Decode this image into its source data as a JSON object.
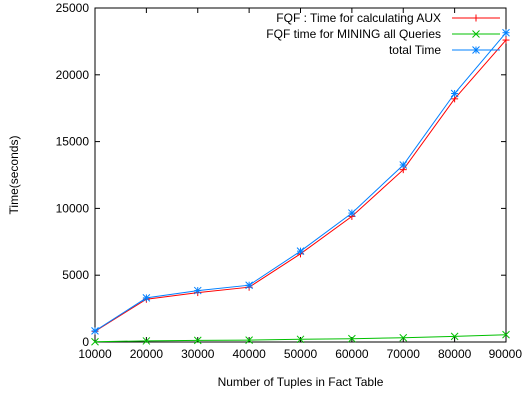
{
  "chart_data": {
    "type": "line",
    "xlabel": "Number of Tuples in Fact Table",
    "ylabel": "Time(seconds)",
    "x": [
      10000,
      20000,
      30000,
      40000,
      50000,
      60000,
      70000,
      80000,
      90000
    ],
    "xlim": [
      10000,
      90000
    ],
    "ylim": [
      0,
      25000
    ],
    "xticks": [
      10000,
      20000,
      30000,
      40000,
      50000,
      60000,
      70000,
      80000,
      90000
    ],
    "yticks": [
      0,
      5000,
      10000,
      15000,
      20000,
      25000
    ],
    "grid": false,
    "legend_position": "top-right",
    "series": [
      {
        "name": "FQF : Time for calculating AUX",
        "color": "#ff0000",
        "marker": "plus",
        "values": [
          800,
          3200,
          3700,
          4100,
          6600,
          9400,
          12900,
          18200,
          22600
        ]
      },
      {
        "name": "FQF time for MINING all Queries",
        "color": "#00c000",
        "marker": "cross",
        "values": [
          20,
          80,
          120,
          140,
          200,
          250,
          320,
          420,
          550
        ]
      },
      {
        "name": "total Time",
        "color": "#0080ff",
        "marker": "star",
        "values": [
          830,
          3300,
          3850,
          4250,
          6800,
          9650,
          13250,
          18600,
          23150
        ]
      }
    ]
  }
}
